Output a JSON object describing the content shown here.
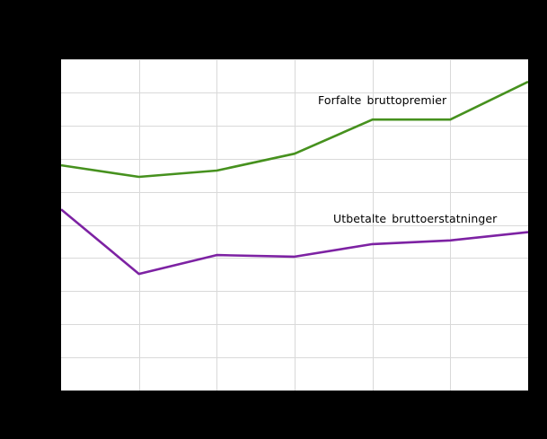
{
  "figure": {
    "background_color": "#000000",
    "plot_background_color": "#ffffff",
    "gridline_color": "#d9d9d9"
  },
  "chart_data": {
    "type": "line",
    "x": [
      0,
      1,
      2,
      3,
      4,
      5,
      6
    ],
    "x_tick_labels_visible": false,
    "y_tick_labels_visible": false,
    "title": "",
    "xlabel": "",
    "ylabel": "",
    "ylim": [
      0,
      10
    ],
    "units": "gridline units (axis tick labels not visible in image)",
    "grid": true,
    "grid_rows": 10,
    "grid_cols": 6,
    "legend_position": "inline-labels",
    "series": [
      {
        "name": "Forfalte bruttopremier",
        "color": "#46911e",
        "values": [
          6.8,
          6.45,
          6.64,
          7.15,
          8.18,
          8.18,
          9.32
        ]
      },
      {
        "name": "Utbetalte bruttoerstatninger",
        "color": "#7d22a3",
        "values": [
          5.47,
          3.52,
          4.09,
          4.04,
          4.42,
          4.53,
          4.78
        ]
      }
    ]
  }
}
